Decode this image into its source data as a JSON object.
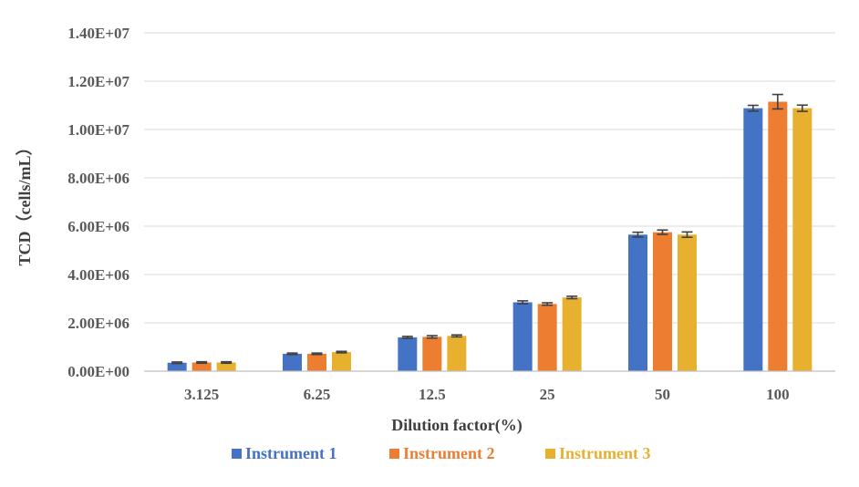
{
  "chart_data": {
    "type": "bar",
    "title": "",
    "xlabel": "Dilution factor(%)",
    "ylabel": "TCD（cells/mL）",
    "categories": [
      "3.125",
      "6.25",
      "12.5",
      "25",
      "50",
      "100"
    ],
    "ylim": [
      0,
      14000000
    ],
    "yticks": [
      "0.00E+00",
      "2.00E+06",
      "4.00E+06",
      "6.00E+06",
      "8.00E+06",
      "1.00E+07",
      "1.20E+07",
      "1.40E+07"
    ],
    "grid": true,
    "legend_position": "bottom",
    "series": [
      {
        "name": "Instrument 1",
        "color": "#4472C4",
        "values": [
          350000,
          720000,
          1400000,
          2850000,
          5650000,
          10880000
        ],
        "errors": [
          30000,
          30000,
          40000,
          60000,
          100000,
          120000
        ]
      },
      {
        "name": "Instrument 2",
        "color": "#ED7D31",
        "values": [
          360000,
          720000,
          1420000,
          2780000,
          5750000,
          11150000
        ],
        "errors": [
          30000,
          30000,
          50000,
          50000,
          90000,
          300000
        ]
      },
      {
        "name": "Instrument 3",
        "color": "#E7B12F",
        "values": [
          360000,
          790000,
          1460000,
          3050000,
          5650000,
          10880000
        ],
        "errors": [
          30000,
          30000,
          40000,
          50000,
          110000,
          130000
        ]
      }
    ],
    "error_bar_color": "#404040"
  }
}
